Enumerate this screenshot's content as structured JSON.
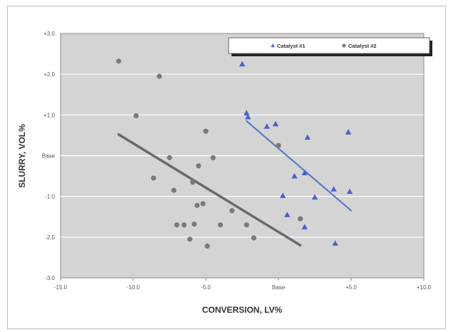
{
  "chart_data": {
    "type": "scatter",
    "xlabel": "CONVERSION, LV%",
    "ylabel": "SLURRY, VOL%",
    "xlim": [
      -15,
      10
    ],
    "ylim": [
      -3,
      3
    ],
    "x_ticks": [
      {
        "value": -15,
        "label": "-15.0"
      },
      {
        "value": -10,
        "label": "-10.0"
      },
      {
        "value": -5,
        "label": "-5.0"
      },
      {
        "value": 0,
        "label": "Base"
      },
      {
        "value": 5,
        "label": "+5.0"
      },
      {
        "value": 10,
        "label": "+10.0"
      }
    ],
    "y_ticks": [
      {
        "value": 3,
        "label": "+3.0"
      },
      {
        "value": 2,
        "label": "+2.0"
      },
      {
        "value": 1,
        "label": "+1.0"
      },
      {
        "value": 0,
        "label": "Base"
      },
      {
        "value": -1,
        "label": "-1.0"
      },
      {
        "value": -2,
        "label": "-2.0"
      },
      {
        "value": -3,
        "label": "-3.0"
      }
    ],
    "grid": "horizontal",
    "legend_position": "top-right",
    "series": [
      {
        "name": "Catalyst #1",
        "marker": "triangle",
        "color": "#4a5fcf",
        "points": [
          {
            "x": -2.5,
            "y": 2.25
          },
          {
            "x": -2.2,
            "y": 1.05
          },
          {
            "x": -2.1,
            "y": 0.95
          },
          {
            "x": -0.8,
            "y": 0.72
          },
          {
            "x": -0.2,
            "y": 0.78
          },
          {
            "x": 2.0,
            "y": 0.45
          },
          {
            "x": 4.8,
            "y": 0.58
          },
          {
            "x": 1.1,
            "y": -0.5
          },
          {
            "x": 1.8,
            "y": -0.42
          },
          {
            "x": 0.3,
            "y": -0.98
          },
          {
            "x": 2.5,
            "y": -1.02
          },
          {
            "x": 3.8,
            "y": -0.82
          },
          {
            "x": 4.9,
            "y": -0.88
          },
          {
            "x": 0.6,
            "y": -1.45
          },
          {
            "x": 1.8,
            "y": -1.75
          },
          {
            "x": 3.9,
            "y": -2.15
          }
        ],
        "trendline": {
          "x": [
            -2.2,
            5.0
          ],
          "y": [
            0.85,
            -1.35
          ],
          "color": "#4a76c6"
        }
      },
      {
        "name": "Catalyst #2",
        "marker": "circle",
        "color": "#7a7a7a",
        "points": [
          {
            "x": -11.0,
            "y": 2.32
          },
          {
            "x": -8.2,
            "y": 1.95
          },
          {
            "x": -9.8,
            "y": 0.98
          },
          {
            "x": -5.0,
            "y": 0.6
          },
          {
            "x": 0.0,
            "y": 0.25
          },
          {
            "x": -7.5,
            "y": -0.05
          },
          {
            "x": -4.5,
            "y": -0.05
          },
          {
            "x": -5.5,
            "y": -0.25
          },
          {
            "x": -8.6,
            "y": -0.55
          },
          {
            "x": -5.9,
            "y": -0.65
          },
          {
            "x": -7.2,
            "y": -0.85
          },
          {
            "x": -5.6,
            "y": -1.22
          },
          {
            "x": -5.2,
            "y": -1.18
          },
          {
            "x": -3.2,
            "y": -1.35
          },
          {
            "x": -7.0,
            "y": -1.7
          },
          {
            "x": -6.5,
            "y": -1.7
          },
          {
            "x": -5.8,
            "y": -1.68
          },
          {
            "x": -4.0,
            "y": -1.7
          },
          {
            "x": -2.2,
            "y": -1.7
          },
          {
            "x": 1.5,
            "y": -1.55
          },
          {
            "x": -6.1,
            "y": -2.05
          },
          {
            "x": -4.9,
            "y": -2.22
          },
          {
            "x": -1.7,
            "y": -2.02
          }
        ],
        "trendline": {
          "x": [
            -11.0,
            1.5
          ],
          "y": [
            0.52,
            -2.2
          ],
          "color": "#6a6a6a"
        }
      }
    ]
  }
}
